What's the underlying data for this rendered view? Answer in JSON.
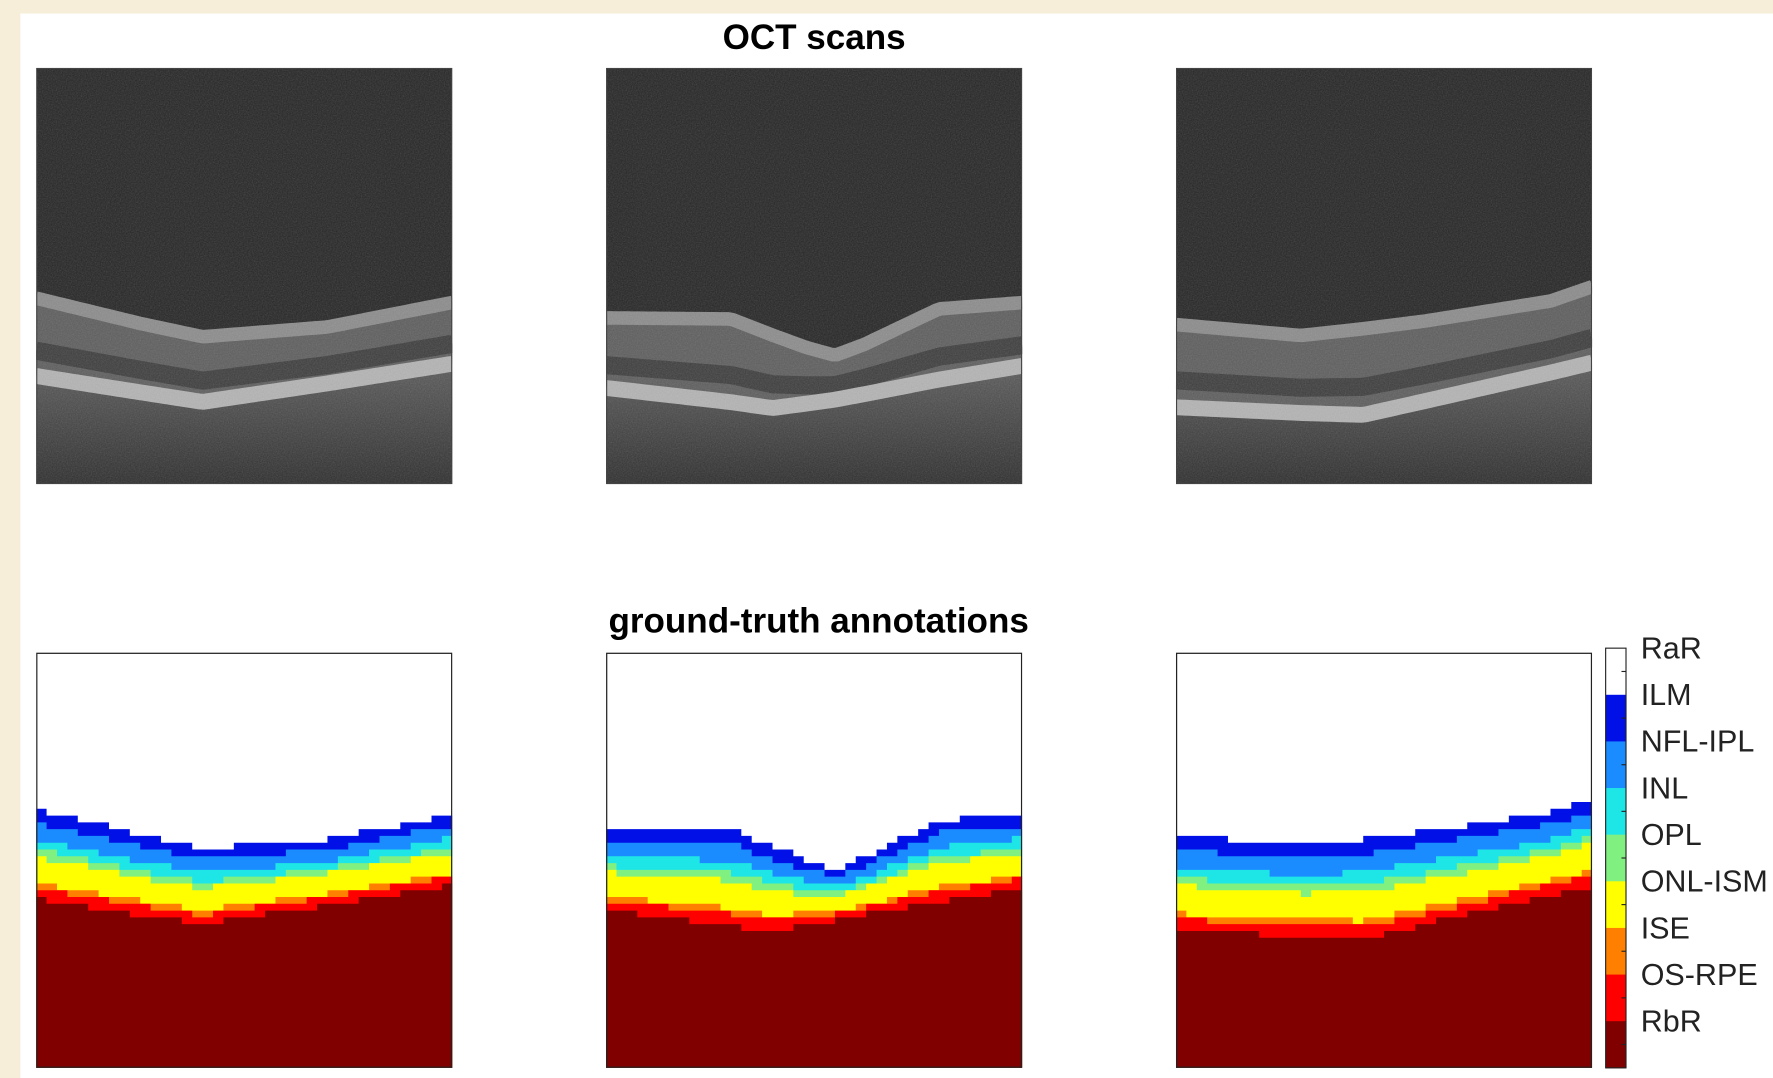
{
  "figure": {
    "top_title": "OCT scans",
    "bottom_title": "ground-truth annotations",
    "legend": [
      {
        "label": "RaR",
        "color": "#ffffff"
      },
      {
        "label": "ILM",
        "color": "#0010e6"
      },
      {
        "label": "NFL-IPL",
        "color": "#1a8cff"
      },
      {
        "label": "INL",
        "color": "#1ee6e6"
      },
      {
        "label": "OPL",
        "color": "#80f080"
      },
      {
        "label": "ONL-ISM",
        "color": "#ffff00"
      },
      {
        "label": "ISE",
        "color": "#ff8000"
      },
      {
        "label": "OS-RPE",
        "color": "#ff0000"
      },
      {
        "label": "RbR",
        "color": "#800000"
      }
    ]
  }
}
